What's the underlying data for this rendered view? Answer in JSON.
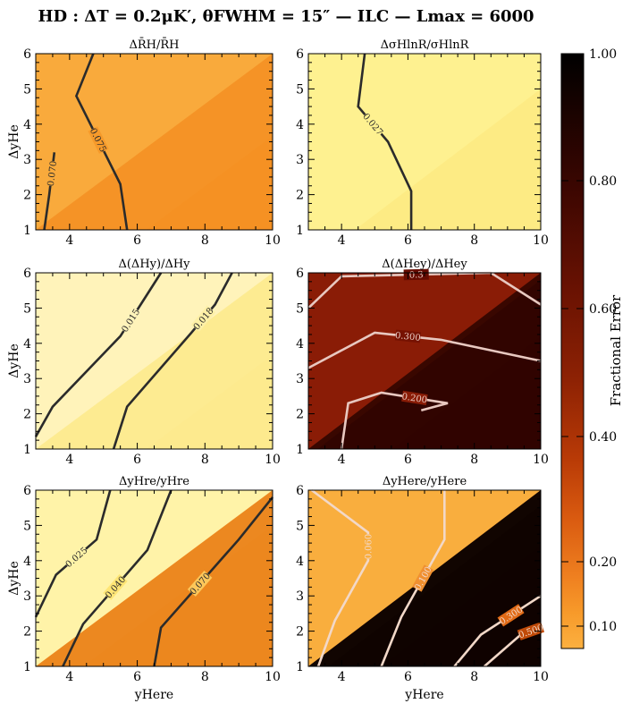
{
  "figure_title": "HD : ΔT = 0.2μK′, θFWHM = 15″ — ILC — Lmax = 6000",
  "colorbar": {
    "label": "Fractional Error",
    "ticks": [
      "1.00",
      "0.80",
      "0.60",
      "0.40",
      "0.20",
      "0.10"
    ]
  },
  "chart_data": [
    {
      "type": "contour",
      "title": "ΔR̄H/R̄H",
      "xlabel": "",
      "ylabel": "ΔyHe",
      "xlim": [
        3,
        10
      ],
      "ylim": [
        1,
        6
      ],
      "xticks": [
        "4",
        "6",
        "8",
        "10"
      ],
      "yticks": [
        "1",
        "2",
        "3",
        "4",
        "5",
        "6"
      ],
      "fill_colors": [
        "#f9aa3c",
        "#f69a2a",
        "#f58f22"
      ],
      "contours": [
        {
          "label": "0.070",
          "color": "#2b2b2b",
          "points": [
            [
              3.25,
              1
            ],
            [
              3.4,
              2
            ],
            [
              3.55,
              3.2
            ]
          ]
        },
        {
          "label": "0.075",
          "color": "#2b2b2b",
          "points": [
            [
              5.7,
              1
            ],
            [
              5.5,
              2.3
            ],
            [
              4.2,
              4.8
            ],
            [
              4.7,
              6
            ]
          ]
        }
      ]
    },
    {
      "type": "contour",
      "title": "ΔσHlnR/σHlnR",
      "xlabel": "",
      "ylabel": "",
      "xlim": [
        3,
        10
      ],
      "ylim": [
        1,
        6
      ],
      "xticks": [
        "4",
        "6",
        "8",
        "10"
      ],
      "yticks": [
        "1",
        "2",
        "3",
        "4",
        "5",
        "6"
      ],
      "fill_colors": [
        "#fef190",
        "#fdea82"
      ],
      "contours": [
        {
          "label": "0.027",
          "color": "#2b2b2b",
          "points": [
            [
              6.1,
              1
            ],
            [
              6.1,
              2.1
            ],
            [
              5.4,
              3.5
            ],
            [
              4.5,
              4.5
            ],
            [
              4.7,
              6
            ]
          ]
        }
      ]
    },
    {
      "type": "contour",
      "title": "Δ(ΔHy)/ΔHy",
      "xlabel": "",
      "ylabel": "ΔyHe",
      "xlim": [
        3,
        10
      ],
      "ylim": [
        1,
        6
      ],
      "xticks": [
        "4",
        "6",
        "8",
        "10"
      ],
      "yticks": [
        "1",
        "2",
        "3",
        "4",
        "5",
        "6"
      ],
      "fill_colors": [
        "#fff3ba",
        "#fef0a6",
        "#fde98a"
      ],
      "contours": [
        {
          "label": "0.015",
          "color": "#2b2b2b",
          "points": [
            [
              3,
              1.35
            ],
            [
              3.5,
              2.2
            ],
            [
              5.5,
              4.2
            ],
            [
              6.1,
              5.1
            ],
            [
              6.7,
              6
            ]
          ]
        },
        {
          "label": "0.018",
          "color": "#2b2b2b",
          "points": [
            [
              5.3,
              1
            ],
            [
              5.7,
              2.2
            ],
            [
              7.6,
              4.3
            ],
            [
              8.3,
              5.1
            ],
            [
              8.8,
              6
            ]
          ]
        }
      ]
    },
    {
      "type": "contour",
      "title": "Δ(ΔHey)/ΔHey",
      "xlabel": "",
      "ylabel": "",
      "xlim": [
        3,
        10
      ],
      "ylim": [
        1,
        6
      ],
      "xticks": [
        "4",
        "6",
        "8",
        "10"
      ],
      "yticks": [
        "1",
        "2",
        "3",
        "4",
        "5",
        "6"
      ],
      "fill_colors": [
        "#8a1c06",
        "#761202",
        "#650b01",
        "#4d0601",
        "#2a0300"
      ],
      "contours": [
        {
          "label": "0.200",
          "color": "#e8c8c0",
          "points": [
            [
              4.0,
              1
            ],
            [
              4.2,
              2.3
            ],
            [
              5.2,
              2.6
            ],
            [
              7.2,
              2.3
            ],
            [
              6.4,
              2.1
            ]
          ]
        },
        {
          "label": "0.300",
          "color": "#e8c8c0",
          "points": [
            [
              3,
              3.3
            ],
            [
              5.0,
              4.3
            ],
            [
              7.0,
              4.1
            ],
            [
              10,
              3.5
            ]
          ]
        },
        {
          "label": "0.3",
          "color": "#e8c8c0",
          "points": [
            [
              3,
              5.0
            ],
            [
              4.0,
              5.9
            ],
            [
              8.5,
              6
            ],
            [
              10,
              5.1
            ]
          ]
        }
      ]
    },
    {
      "type": "contour",
      "title": "ΔyHre/yHre",
      "xlabel": "yHere",
      "ylabel": "ΔyHe",
      "xlim": [
        3,
        10
      ],
      "ylim": [
        1,
        6
      ],
      "xticks": [
        "4",
        "6",
        "8",
        "10"
      ],
      "yticks": [
        "1",
        "2",
        "3",
        "4",
        "5",
        "6"
      ],
      "fill_colors": [
        "#fff3a8",
        "#fee575",
        "#fdc75a",
        "#f9b048",
        "#f69a32",
        "#ea821a"
      ],
      "contours": [
        {
          "label": "0.025",
          "color": "#2b2b2b",
          "points": [
            [
              3,
              2.4
            ],
            [
              3.6,
              3.6
            ],
            [
              4.8,
              4.6
            ],
            [
              5.2,
              6
            ]
          ]
        },
        {
          "label": "0.040",
          "color": "#2b2b2b",
          "points": [
            [
              3.8,
              1
            ],
            [
              4.4,
              2.2
            ],
            [
              6.3,
              4.3
            ],
            [
              7.0,
              6
            ]
          ]
        },
        {
          "label": "0.070",
          "color": "#2b2b2b",
          "points": [
            [
              6.5,
              1
            ],
            [
              6.7,
              2.1
            ],
            [
              9.0,
              4.6
            ],
            [
              10,
              5.8
            ]
          ]
        }
      ]
    },
    {
      "type": "contour",
      "title": "ΔyHere/yHere",
      "xlabel": "yHere",
      "ylabel": "",
      "xlim": [
        3,
        10
      ],
      "ylim": [
        1,
        6
      ],
      "xticks": [
        "4",
        "6",
        "8",
        "10"
      ],
      "yticks": [
        "1",
        "2",
        "3",
        "4",
        "5",
        "6"
      ],
      "fill_colors": [
        "#f9ae3e",
        "#f09030",
        "#e06a16",
        "#c04a08",
        "#8e2604",
        "#5a0e02",
        "#000000"
      ],
      "contours": [
        {
          "label": "0.060",
          "color": "#f2d8c8",
          "points": [
            [
              3.3,
              1
            ],
            [
              3.8,
              2.3
            ],
            [
              4.8,
              4.0
            ],
            [
              4.8,
              4.8
            ],
            [
              3.1,
              6
            ]
          ]
        },
        {
          "label": "0.100",
          "color": "#f2d8c8",
          "points": [
            [
              5.2,
              1
            ],
            [
              5.8,
              2.4
            ],
            [
              7.1,
              4.6
            ],
            [
              7.1,
              6
            ]
          ]
        },
        {
          "label": "0.300",
          "color": "#f2d8c8",
          "points": [
            [
              7.4,
              1
            ],
            [
              8.2,
              1.9
            ],
            [
              10,
              3.0
            ]
          ]
        },
        {
          "label": "0.500",
          "color": "#f2d8c8",
          "points": [
            [
              8.3,
              1
            ],
            [
              9.4,
              1.9
            ],
            [
              10,
              2.1
            ]
          ]
        }
      ]
    }
  ]
}
